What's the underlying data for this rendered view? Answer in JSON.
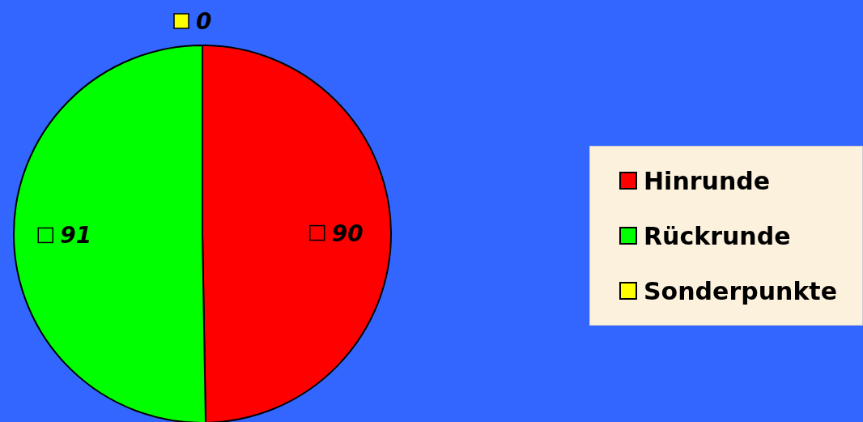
{
  "chart_data": {
    "type": "pie",
    "categories": [
      "Hinrunde",
      "Rückrunde",
      "Sonderpunkte"
    ],
    "values": [
      90,
      91,
      0
    ],
    "value_labels": [
      "90",
      "91",
      "0"
    ],
    "colors": [
      "#ff0000",
      "#00ff00",
      "#ffff00"
    ],
    "legend": "right"
  }
}
